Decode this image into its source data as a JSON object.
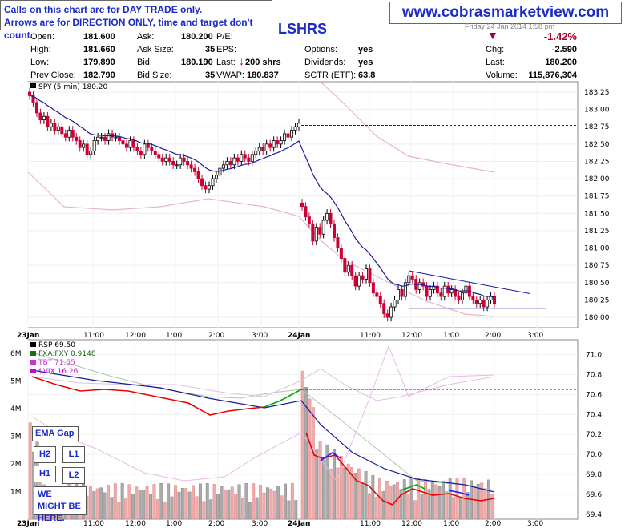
{
  "notice": {
    "line1": "Calls on this chart are for DAY TRADE only.",
    "line2": "Arrows are for DIRECTION ONLY, time and target don't count."
  },
  "website": "www.cobrasmarketview.com",
  "symbol": "LSHRS",
  "quote": {
    "open_label": "Open:",
    "open": "181.600",
    "high_label": "High:",
    "high": "181.660",
    "low_label": "Low:",
    "low": "179.890",
    "prev_close_label": "Prev Close:",
    "prev_close": "182.790",
    "ask_label": "Ask:",
    "ask": "180.200",
    "ask_size_label": "Ask Size:",
    "ask_size": "35",
    "bid_label": "Bid:",
    "bid": "180.190",
    "bid_size_label": "Bid Size:",
    "bid_size": "35",
    "pe_label": "P/E:",
    "eps_label": "EPS:",
    "last_label": "Last:",
    "last_shares": "200 shrs",
    "vwap_label": "VWAP:",
    "vwap": "180.837",
    "options_label": "Options:",
    "options": "yes",
    "dividends_label": "Dividends:",
    "dividends": "yes",
    "sctr_label": "SCTR (ETF):",
    "sctr": "63.8",
    "date_fragment": "Friday  24 Jan 2014  1:58 pm",
    "pct_change": "-1.42%",
    "chg_label": "Chg:",
    "chg": "-2.590",
    "last2_label": "Last:",
    "last2": "180.200",
    "volume_label": "Volume:",
    "volume": "115,876,304"
  },
  "annotations": {
    "ema_gap": "EMA Gap",
    "h2": "H2",
    "l1": "L1",
    "h1": "H1",
    "l2": "L2",
    "we_might": "WE MIGHT BE HERE."
  },
  "colors": {
    "up_candle": "#000000",
    "down_candle": "#cc0033",
    "ema": "#1a1a9c",
    "slow_ma": "#e8b4c8",
    "support_line": "#1a6b1a",
    "resistance_line": "#cc0000",
    "dashed_line": "#1a1a9c",
    "rsp_up": "#1a1aff",
    "rsp_down": "#ee0000",
    "rsp_green": "#00aa00",
    "vol_up": "#aaaaaa",
    "vol_down": "#f0aaaa"
  },
  "chart_data": [
    {
      "type": "candlestick",
      "title": "SPY (5 min) 180.20",
      "legend": [
        {
          "name": "SPY (5 min) 180.20"
        }
      ],
      "x_ticks": [
        "23Jan",
        "11:00",
        "12:00",
        "1:00",
        "2:00",
        "3:00",
        "24Jan",
        "11:00",
        "12:00",
        "1:00",
        "2:00",
        "3:00"
      ],
      "y_ticks": [
        180.0,
        180.25,
        180.5,
        180.75,
        181.0,
        181.25,
        181.5,
        181.75,
        182.0,
        182.25,
        182.5,
        182.75,
        183.0,
        183.25
      ],
      "ylim": [
        179.85,
        183.4
      ],
      "day1_close": [
        183.2,
        183.1,
        182.95,
        182.85,
        182.9,
        182.75,
        182.8,
        182.7,
        182.75,
        182.65,
        182.6,
        182.7,
        182.6,
        182.55,
        182.45,
        182.5,
        182.35,
        182.4,
        182.55,
        182.6,
        182.6,
        182.55,
        182.65,
        182.6,
        182.6,
        182.55,
        182.5,
        182.45,
        182.55,
        182.45,
        182.4,
        182.35,
        182.5,
        182.45,
        182.4,
        182.35,
        182.3,
        182.25,
        182.3,
        182.25,
        182.2,
        182.2,
        182.3,
        182.25,
        182.2,
        182.15,
        182.1,
        182.0,
        181.9,
        181.85,
        181.9,
        182.0,
        182.05,
        182.15,
        182.2,
        182.25,
        182.2,
        182.3,
        182.25,
        182.35,
        182.3,
        182.25,
        182.35,
        182.4,
        182.45,
        182.4,
        182.5,
        182.45,
        182.55,
        182.5,
        182.55,
        182.65,
        182.6,
        182.7,
        182.75,
        182.8
      ],
      "day2_close": [
        181.6,
        181.45,
        181.35,
        181.1,
        181.3,
        181.2,
        181.4,
        181.5,
        181.35,
        181.15,
        181.0,
        180.85,
        180.65,
        180.75,
        180.6,
        180.45,
        180.6,
        180.55,
        180.7,
        180.5,
        180.35,
        180.3,
        180.2,
        180.05,
        180.0,
        180.15,
        180.25,
        180.4,
        180.3,
        180.5,
        180.6,
        180.55,
        180.4,
        180.5,
        180.45,
        180.3,
        180.4,
        180.45,
        180.35,
        180.3,
        180.45,
        180.35,
        180.4,
        180.3,
        180.25,
        180.35,
        180.45,
        180.3,
        180.25,
        180.2,
        180.25,
        180.15,
        180.25,
        180.3,
        180.2
      ],
      "levels": {
        "dashed_resistance": 182.77,
        "support_green": 181.0,
        "resistance_red": 181.0,
        "horizontal_support": 180.13
      }
    },
    {
      "type": "line",
      "title": "RSP 69.50",
      "legend": [
        {
          "name": "RSP 69.50"
        },
        {
          "name": "FXA:FXY 0.9148"
        },
        {
          "name": "TBT 71.55"
        },
        {
          "name": "$VIX 16.26"
        }
      ],
      "y_ticks_right": [
        69.4,
        69.6,
        69.8,
        70.0,
        70.2,
        70.4,
        70.6,
        70.8,
        71.0
      ],
      "volume_ticks_left": [
        "1M",
        "2M",
        "3M",
        "4M",
        "5M",
        "6M"
      ],
      "ylim": [
        69.35,
        71.15
      ],
      "volume_ylim": [
        0,
        6500000
      ]
    }
  ]
}
